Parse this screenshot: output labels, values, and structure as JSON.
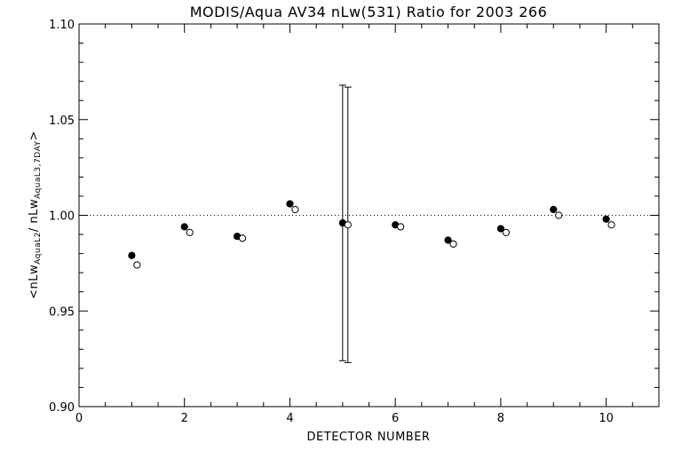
{
  "chart_data": {
    "type": "scatter",
    "title": "MODIS/Aqua AV34 nLw(531) Ratio for 2003 266",
    "xlabel": "DETECTOR NUMBER",
    "ylabel": {
      "prefix": "<nLw",
      "sub1": "AquaL2",
      "mid": "/ nLw",
      "sub2": "AquaL3,7DAY",
      "suffix": ">"
    },
    "xlim": [
      0,
      11
    ],
    "ylim": [
      0.9,
      1.1
    ],
    "x_ticks": [
      0,
      2,
      4,
      6,
      8,
      10
    ],
    "x_tick_labels": [
      "0",
      "2",
      "4",
      "6",
      "8",
      "10"
    ],
    "y_ticks": [
      0.9,
      0.95,
      1.0,
      1.05,
      1.1
    ],
    "y_tick_labels": [
      "0.90",
      "0.95",
      "1.00",
      "1.05",
      "1.10"
    ],
    "reference_line": 1.0,
    "grid": false,
    "series": [
      {
        "marker": "filled-circle",
        "x": [
          1,
          2,
          3,
          4,
          5,
          6,
          7,
          8,
          9,
          10
        ],
        "y": [
          0.979,
          0.994,
          0.989,
          1.006,
          0.996,
          0.995,
          0.987,
          0.993,
          1.003,
          0.998
        ]
      },
      {
        "marker": "open-circle",
        "x": [
          1.1,
          2.1,
          3.1,
          4.1,
          5.1,
          6.1,
          7.1,
          8.1,
          9.1,
          10.1
        ],
        "y": [
          0.974,
          0.991,
          0.988,
          1.003,
          0.995,
          0.994,
          0.985,
          0.991,
          1.0,
          0.995
        ]
      }
    ],
    "error_bars": [
      {
        "x": 5.0,
        "low": 0.924,
        "high": 1.068
      },
      {
        "x": 5.1,
        "low": 0.923,
        "high": 1.067
      }
    ]
  }
}
